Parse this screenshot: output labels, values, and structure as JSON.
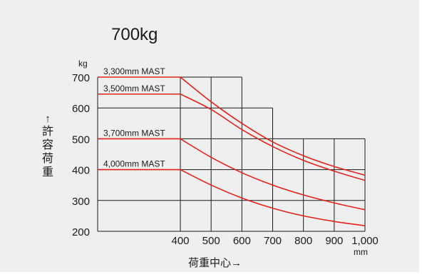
{
  "chart_data": {
    "type": "line",
    "title": "700kg",
    "ylabel": "許容荷重",
    "ylabel_arrow": "↑",
    "y_unit": "kg",
    "xlabel": "荷重中心→",
    "x_unit": "mm",
    "ylim": [
      200,
      700
    ],
    "xlim": [
      400,
      1000
    ],
    "y_ticks": [
      {
        "value": 200,
        "label": "200"
      },
      {
        "value": 300,
        "label": "300"
      },
      {
        "value": 400,
        "label": "400"
      },
      {
        "value": 500,
        "label": "500"
      },
      {
        "value": 600,
        "label": "600"
      },
      {
        "value": 700,
        "label": "700"
      }
    ],
    "x_ticks": [
      {
        "value": 400,
        "label": "400"
      },
      {
        "value": 500,
        "label": "500"
      },
      {
        "value": 600,
        "label": "600"
      },
      {
        "value": 700,
        "label": "700"
      },
      {
        "value": 800,
        "label": "800"
      },
      {
        "value": 900,
        "label": "900"
      },
      {
        "value": 1000,
        "label": "1,000"
      }
    ],
    "grid": true,
    "grid_steps": [
      {
        "x_max": 600,
        "y": 700
      },
      {
        "x_max": 700,
        "y": 600
      },
      {
        "x_max": 1000,
        "y": 500
      }
    ],
    "colors": {
      "series": "#e2231a",
      "grid": "#1a1a1a"
    },
    "series": [
      {
        "name": "3,300mm MAST",
        "x": [
          100,
          400,
          500,
          600,
          700,
          800,
          900,
          1000
        ],
        "y": [
          700,
          700,
          620,
          550,
          490,
          445,
          410,
          382
        ]
      },
      {
        "name": "3,500mm MAST",
        "x": [
          100,
          400,
          500,
          600,
          700,
          800,
          900,
          1000
        ],
        "y": [
          645,
          645,
          595,
          530,
          475,
          430,
          395,
          365
        ]
      },
      {
        "name": "3,700mm MAST",
        "x": [
          100,
          400,
          500,
          600,
          700,
          800,
          900,
          1000
        ],
        "y": [
          500,
          500,
          440,
          390,
          350,
          318,
          292,
          270
        ]
      },
      {
        "name": "4,000mm MAST",
        "x": [
          100,
          400,
          500,
          600,
          700,
          800,
          900,
          1000
        ],
        "y": [
          400,
          400,
          350,
          308,
          275,
          250,
          232,
          218
        ]
      }
    ]
  }
}
